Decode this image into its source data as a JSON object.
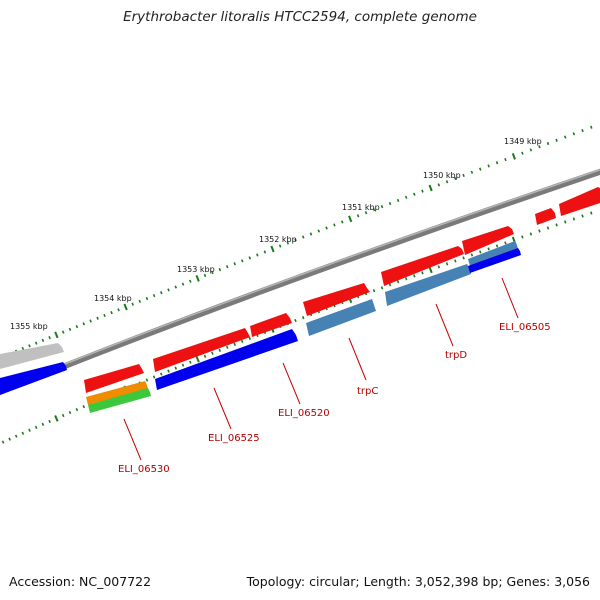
{
  "title": "Erythrobacter litoralis HTCC2594, complete genome",
  "footer": {
    "accession": "Accession: NC_007722",
    "topology": "Topology: circular; Length: 3,052,398 bp; Genes: 3,056"
  },
  "kbp_ticks": [
    "1349 kbp",
    "1350 kbp",
    "1351 kbp",
    "1352 kbp",
    "1353 kbp",
    "1354 kbp",
    "1355 kbp"
  ],
  "gene_labels": [
    "ELI_06505",
    "trpD",
    "trpC",
    "ELI_06520",
    "ELI_06525",
    "ELI_06530"
  ],
  "colors": {
    "backbone": "#808080",
    "cds_red": "#ee1111",
    "cds_blue": "#0000ee",
    "cds_steelblue": "#4682b4",
    "cds_orange": "#f08c00",
    "cds_green": "#3cc83c",
    "cds_gray": "#bdbdbd",
    "tick_green": "#1a7a1a",
    "label_red": "#b40000"
  }
}
